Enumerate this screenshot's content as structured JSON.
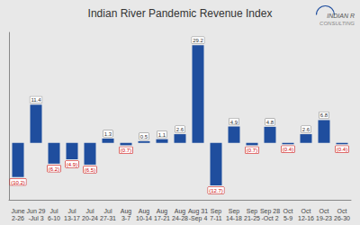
{
  "chart_data": {
    "type": "bar",
    "title": "Indian River Pandemic Revenue Index",
    "categories": [
      "June\n2-26",
      "Jun 29\n-Jul 3",
      "Jul\n6-10",
      "Jul\n13-17",
      "Jul\n20-24",
      "Jul\n27-31",
      "Aug\n3-7",
      "Aug\n10-14",
      "Aug\n17-21",
      "Aug\n24-28",
      "Aug 31\n-Sep 4",
      "Sep\n7-11",
      "Sep\n14-18",
      "Sep\n21-25",
      "Sep 28\n-Oct 2",
      "Oct\n5-9",
      "Oct\n12-16",
      "Oct\n19-23",
      "Oct\n26-30"
    ],
    "values": [
      -10.2,
      11.4,
      -6.2,
      -4.9,
      -6.5,
      1.3,
      -0.7,
      0.5,
      1.1,
      2.6,
      29.2,
      -12.7,
      4.9,
      -0.7,
      4.8,
      -0.4,
      2.6,
      6.8,
      -0.4
    ],
    "value_labels": [
      "(10.2)",
      "11.4",
      "(6.2)",
      "(4.9)",
      "(6.5)",
      "1.3",
      "(0.7)",
      "0.5",
      "1.1",
      "2.6",
      "29.2",
      "(12.7)",
      "4.9",
      "(0.7)",
      "4.8",
      "(0.4)",
      "2.6",
      "6.8",
      "(0.4)"
    ],
    "color": "#1f4e9e",
    "ylim": [
      -17,
      33
    ],
    "grid": false,
    "data_labels": true,
    "tick_labels": "x",
    "annotations": [
      "INDIAN R",
      "CONSULTING"
    ]
  }
}
